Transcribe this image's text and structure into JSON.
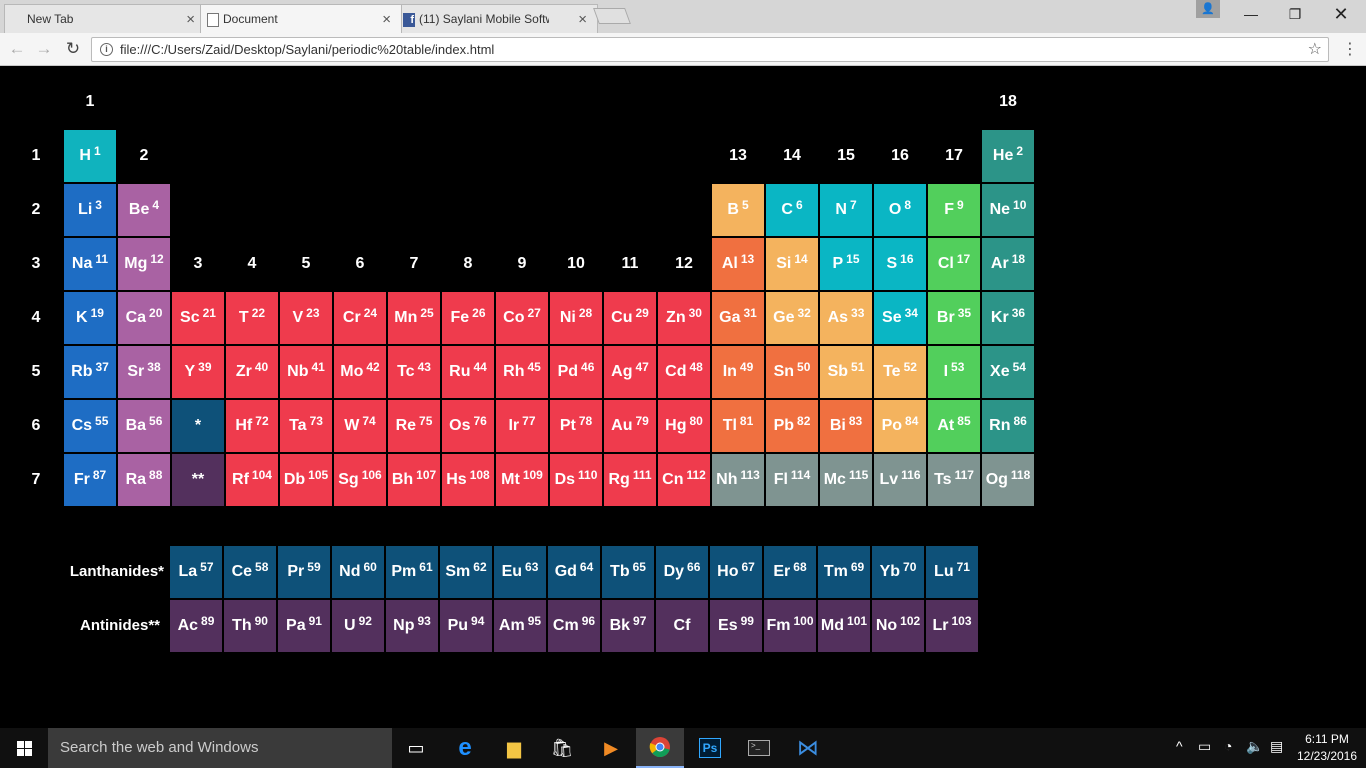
{
  "browser": {
    "tabs": [
      {
        "label": "New Tab",
        "icon": "none"
      },
      {
        "label": "Document",
        "icon": "document-icon"
      },
      {
        "label": "(11) Saylani Mobile Softw",
        "icon": "facebook-icon"
      }
    ],
    "url": "file:///C:/Users/Zaid/Desktop/Saylani/periodic%20table/index.html"
  },
  "colors": {
    "alkali": "#1e6dc4",
    "alkaline": "#a962a3",
    "transition": "#ef3b4d",
    "post_transition": "#f07040",
    "metalloid": "#f4b35e",
    "nonmetal": "#0ab6c4",
    "halogen": "#52cf5c",
    "noble": "#2c9488",
    "unknown": "#7f9491",
    "hydrogen": "#10b3be",
    "lanthanide": "#0e5179",
    "actinide": "#53305d"
  },
  "table": {
    "groups": [
      "1",
      "2",
      "3",
      "4",
      "5",
      "6",
      "7",
      "8",
      "9",
      "10",
      "11",
      "12",
      "13",
      "14",
      "15",
      "16",
      "17",
      "18"
    ],
    "periods": [
      "1",
      "2",
      "3",
      "4",
      "5",
      "6",
      "7"
    ],
    "elements": [
      {
        "s": "H",
        "n": "1",
        "c": "hydrogen",
        "r": 1,
        "col": 1
      },
      {
        "s": "He",
        "n": "2",
        "c": "noble",
        "r": 1,
        "col": 18
      },
      {
        "s": "Li",
        "n": "3",
        "c": "alkali",
        "r": 2,
        "col": 1
      },
      {
        "s": "Be",
        "n": "4",
        "c": "alkaline",
        "r": 2,
        "col": 2
      },
      {
        "s": "B",
        "n": "5",
        "c": "metalloid",
        "r": 2,
        "col": 13
      },
      {
        "s": "C",
        "n": "6",
        "c": "nonmetal",
        "r": 2,
        "col": 14
      },
      {
        "s": "N",
        "n": "7",
        "c": "nonmetal",
        "r": 2,
        "col": 15
      },
      {
        "s": "O",
        "n": "8",
        "c": "nonmetal",
        "r": 2,
        "col": 16
      },
      {
        "s": "F",
        "n": "9",
        "c": "halogen",
        "r": 2,
        "col": 17
      },
      {
        "s": "Ne",
        "n": "10",
        "c": "noble",
        "r": 2,
        "col": 18
      },
      {
        "s": "Na",
        "n": "11",
        "c": "alkali",
        "r": 3,
        "col": 1
      },
      {
        "s": "Mg",
        "n": "12",
        "c": "alkaline",
        "r": 3,
        "col": 2
      },
      {
        "s": "Al",
        "n": "13",
        "c": "post_transition",
        "r": 3,
        "col": 13
      },
      {
        "s": "Si",
        "n": "14",
        "c": "metalloid",
        "r": 3,
        "col": 14
      },
      {
        "s": "P",
        "n": "15",
        "c": "nonmetal",
        "r": 3,
        "col": 15
      },
      {
        "s": "S",
        "n": "16",
        "c": "nonmetal",
        "r": 3,
        "col": 16
      },
      {
        "s": "Cl",
        "n": "17",
        "c": "halogen",
        "r": 3,
        "col": 17
      },
      {
        "s": "Ar",
        "n": "18",
        "c": "noble",
        "r": 3,
        "col": 18
      },
      {
        "s": "K",
        "n": "19",
        "c": "alkali",
        "r": 4,
        "col": 1
      },
      {
        "s": "Ca",
        "n": "20",
        "c": "alkaline",
        "r": 4,
        "col": 2
      },
      {
        "s": "Sc",
        "n": "21",
        "c": "transition",
        "r": 4,
        "col": 3
      },
      {
        "s": "T",
        "n": "22",
        "c": "transition",
        "r": 4,
        "col": 4
      },
      {
        "s": "V",
        "n": "23",
        "c": "transition",
        "r": 4,
        "col": 5
      },
      {
        "s": "Cr",
        "n": "24",
        "c": "transition",
        "r": 4,
        "col": 6
      },
      {
        "s": "Mn",
        "n": "25",
        "c": "transition",
        "r": 4,
        "col": 7
      },
      {
        "s": "Fe",
        "n": "26",
        "c": "transition",
        "r": 4,
        "col": 8
      },
      {
        "s": "Co",
        "n": "27",
        "c": "transition",
        "r": 4,
        "col": 9
      },
      {
        "s": "Ni",
        "n": "28",
        "c": "transition",
        "r": 4,
        "col": 10
      },
      {
        "s": "Cu",
        "n": "29",
        "c": "transition",
        "r": 4,
        "col": 11
      },
      {
        "s": "Zn",
        "n": "30",
        "c": "transition",
        "r": 4,
        "col": 12
      },
      {
        "s": "Ga",
        "n": "31",
        "c": "post_transition",
        "r": 4,
        "col": 13
      },
      {
        "s": "Ge",
        "n": "32",
        "c": "metalloid",
        "r": 4,
        "col": 14
      },
      {
        "s": "As",
        "n": "33",
        "c": "metalloid",
        "r": 4,
        "col": 15
      },
      {
        "s": "Se",
        "n": "34",
        "c": "nonmetal",
        "r": 4,
        "col": 16
      },
      {
        "s": "Br",
        "n": "35",
        "c": "halogen",
        "r": 4,
        "col": 17
      },
      {
        "s": "Kr",
        "n": "36",
        "c": "noble",
        "r": 4,
        "col": 18
      },
      {
        "s": "Rb",
        "n": "37",
        "c": "alkali",
        "r": 5,
        "col": 1
      },
      {
        "s": "Sr",
        "n": "38",
        "c": "alkaline",
        "r": 5,
        "col": 2
      },
      {
        "s": "Y",
        "n": "39",
        "c": "transition",
        "r": 5,
        "col": 3
      },
      {
        "s": "Zr",
        "n": "40",
        "c": "transition",
        "r": 5,
        "col": 4
      },
      {
        "s": "Nb",
        "n": "41",
        "c": "transition",
        "r": 5,
        "col": 5
      },
      {
        "s": "Mo",
        "n": "42",
        "c": "transition",
        "r": 5,
        "col": 6
      },
      {
        "s": "Tc",
        "n": "43",
        "c": "transition",
        "r": 5,
        "col": 7
      },
      {
        "s": "Ru",
        "n": "44",
        "c": "transition",
        "r": 5,
        "col": 8
      },
      {
        "s": "Rh",
        "n": "45",
        "c": "transition",
        "r": 5,
        "col": 9
      },
      {
        "s": "Pd",
        "n": "46",
        "c": "transition",
        "r": 5,
        "col": 10
      },
      {
        "s": "Ag",
        "n": "47",
        "c": "transition",
        "r": 5,
        "col": 11
      },
      {
        "s": "Cd",
        "n": "48",
        "c": "transition",
        "r": 5,
        "col": 12
      },
      {
        "s": "In",
        "n": "49",
        "c": "post_transition",
        "r": 5,
        "col": 13
      },
      {
        "s": "Sn",
        "n": "50",
        "c": "post_transition",
        "r": 5,
        "col": 14
      },
      {
        "s": "Sb",
        "n": "51",
        "c": "metalloid",
        "r": 5,
        "col": 15
      },
      {
        "s": "Te",
        "n": "52",
        "c": "metalloid",
        "r": 5,
        "col": 16
      },
      {
        "s": "I",
        "n": "53",
        "c": "halogen",
        "r": 5,
        "col": 17
      },
      {
        "s": "Xe",
        "n": "54",
        "c": "noble",
        "r": 5,
        "col": 18
      },
      {
        "s": "Cs",
        "n": "55",
        "c": "alkali",
        "r": 6,
        "col": 1
      },
      {
        "s": "Ba",
        "n": "56",
        "c": "alkaline",
        "r": 6,
        "col": 2
      },
      {
        "s": "*",
        "n": "",
        "c": "lanthanide",
        "r": 6,
        "col": 3
      },
      {
        "s": "Hf",
        "n": "72",
        "c": "transition",
        "r": 6,
        "col": 4
      },
      {
        "s": "Ta",
        "n": "73",
        "c": "transition",
        "r": 6,
        "col": 5
      },
      {
        "s": "W",
        "n": "74",
        "c": "transition",
        "r": 6,
        "col": 6
      },
      {
        "s": "Re",
        "n": "75",
        "c": "transition",
        "r": 6,
        "col": 7
      },
      {
        "s": "Os",
        "n": "76",
        "c": "transition",
        "r": 6,
        "col": 8
      },
      {
        "s": "Ir",
        "n": "77",
        "c": "transition",
        "r": 6,
        "col": 9
      },
      {
        "s": "Pt",
        "n": "78",
        "c": "transition",
        "r": 6,
        "col": 10
      },
      {
        "s": "Au",
        "n": "79",
        "c": "transition",
        "r": 6,
        "col": 11
      },
      {
        "s": "Hg",
        "n": "80",
        "c": "transition",
        "r": 6,
        "col": 12
      },
      {
        "s": "Tl",
        "n": "81",
        "c": "post_transition",
        "r": 6,
        "col": 13
      },
      {
        "s": "Pb",
        "n": "82",
        "c": "post_transition",
        "r": 6,
        "col": 14
      },
      {
        "s": "Bi",
        "n": "83",
        "c": "post_transition",
        "r": 6,
        "col": 15
      },
      {
        "s": "Po",
        "n": "84",
        "c": "metalloid",
        "r": 6,
        "col": 16
      },
      {
        "s": "At",
        "n": "85",
        "c": "halogen",
        "r": 6,
        "col": 17
      },
      {
        "s": "Rn",
        "n": "86",
        "c": "noble",
        "r": 6,
        "col": 18
      },
      {
        "s": "Fr",
        "n": "87",
        "c": "alkali",
        "r": 7,
        "col": 1
      },
      {
        "s": "Ra",
        "n": "88",
        "c": "alkaline",
        "r": 7,
        "col": 2
      },
      {
        "s": "**",
        "n": "",
        "c": "actinide",
        "r": 7,
        "col": 3
      },
      {
        "s": "Rf",
        "n": "104",
        "c": "transition",
        "r": 7,
        "col": 4
      },
      {
        "s": "Db",
        "n": "105",
        "c": "transition",
        "r": 7,
        "col": 5
      },
      {
        "s": "Sg",
        "n": "106",
        "c": "transition",
        "r": 7,
        "col": 6
      },
      {
        "s": "Bh",
        "n": "107",
        "c": "transition",
        "r": 7,
        "col": 7
      },
      {
        "s": "Hs",
        "n": "108",
        "c": "transition",
        "r": 7,
        "col": 8
      },
      {
        "s": "Mt",
        "n": "109",
        "c": "transition",
        "r": 7,
        "col": 9
      },
      {
        "s": "Ds",
        "n": "110",
        "c": "transition",
        "r": 7,
        "col": 10
      },
      {
        "s": "Rg",
        "n": "111",
        "c": "transition",
        "r": 7,
        "col": 11
      },
      {
        "s": "Cn",
        "n": "112",
        "c": "transition",
        "r": 7,
        "col": 12
      },
      {
        "s": "Nh",
        "n": "113",
        "c": "unknown",
        "r": 7,
        "col": 13
      },
      {
        "s": "Fl",
        "n": "114",
        "c": "unknown",
        "r": 7,
        "col": 14
      },
      {
        "s": "Mc",
        "n": "115",
        "c": "unknown",
        "r": 7,
        "col": 15
      },
      {
        "s": "Lv",
        "n": "116",
        "c": "unknown",
        "r": 7,
        "col": 16
      },
      {
        "s": "Ts",
        "n": "117",
        "c": "unknown",
        "r": 7,
        "col": 17
      },
      {
        "s": "Og",
        "n": "118",
        "c": "unknown",
        "r": 7,
        "col": 18
      }
    ]
  },
  "series": {
    "lanthanides": {
      "label": "Lanthanides*",
      "elements": [
        {
          "s": "La",
          "n": "57"
        },
        {
          "s": "Ce",
          "n": "58"
        },
        {
          "s": "Pr",
          "n": "59"
        },
        {
          "s": "Nd",
          "n": "60"
        },
        {
          "s": "Pm",
          "n": "61"
        },
        {
          "s": "Sm",
          "n": "62"
        },
        {
          "s": "Eu",
          "n": "63"
        },
        {
          "s": "Gd",
          "n": "64"
        },
        {
          "s": "Tb",
          "n": "65"
        },
        {
          "s": "Dy",
          "n": "66"
        },
        {
          "s": "Ho",
          "n": "67"
        },
        {
          "s": "Er",
          "n": "68"
        },
        {
          "s": "Tm",
          "n": "69"
        },
        {
          "s": "Yb",
          "n": "70"
        },
        {
          "s": "Lu",
          "n": "71"
        }
      ]
    },
    "actinides": {
      "label": "Antinides**",
      "elements": [
        {
          "s": "Ac",
          "n": "89"
        },
        {
          "s": "Th",
          "n": "90"
        },
        {
          "s": "Pa",
          "n": "91"
        },
        {
          "s": "U",
          "n": "92"
        },
        {
          "s": "Np",
          "n": "93"
        },
        {
          "s": "Pu",
          "n": "94"
        },
        {
          "s": "Am",
          "n": "95"
        },
        {
          "s": "Cm",
          "n": "96"
        },
        {
          "s": "Bk",
          "n": "97"
        },
        {
          "s": "Cf",
          "n": ""
        },
        {
          "s": "Es",
          "n": "99"
        },
        {
          "s": "Fm",
          "n": "100"
        },
        {
          "s": "Md",
          "n": "101"
        },
        {
          "s": "No",
          "n": "102"
        },
        {
          "s": "Lr",
          "n": "103"
        }
      ]
    }
  },
  "taskbar": {
    "search_placeholder": "Search the web and Windows",
    "time": "6:11 PM",
    "date": "12/23/2016",
    "apps": [
      "task-view-icon",
      "edge-icon",
      "file-explorer-icon",
      "store-icon",
      "media-player-icon",
      "chrome-icon",
      "photoshop-icon",
      "cmd-icon",
      "visual-studio-icon"
    ],
    "photoshop_label": "Ps"
  }
}
